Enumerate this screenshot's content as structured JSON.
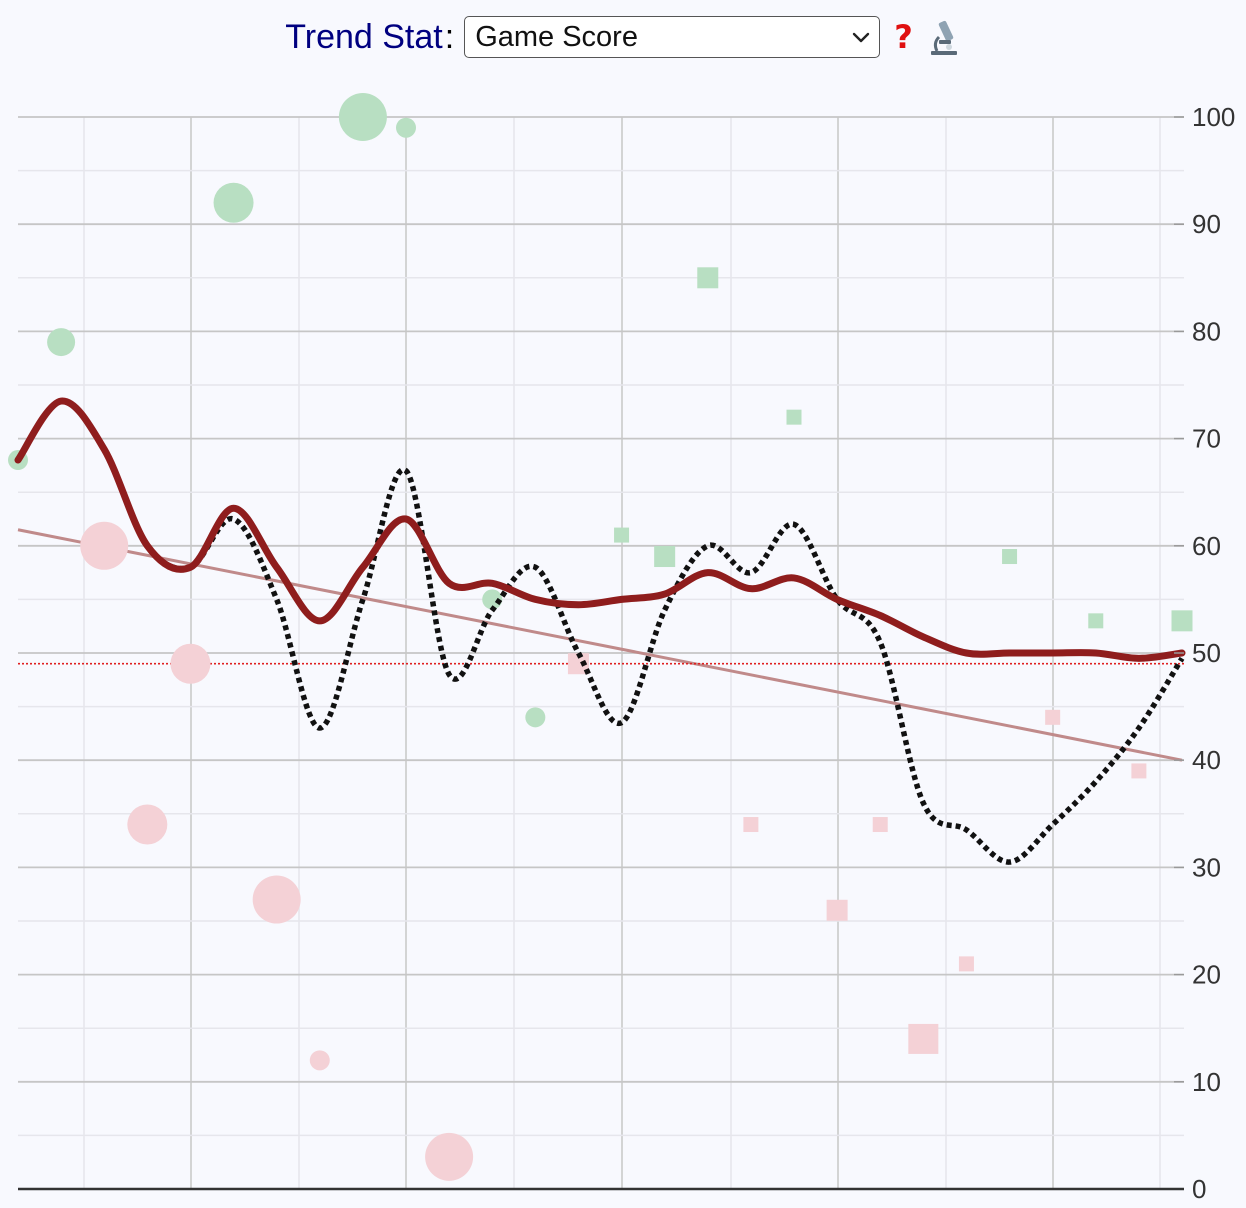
{
  "toolbar": {
    "label": "Trend Stat",
    "colon": ":",
    "selected": "Game Score",
    "help_glyph": "?",
    "help_icon": "question-icon",
    "lab_icon": "microscope-icon"
  },
  "chart_data": {
    "type": "scatter",
    "title": "",
    "xlabel": "",
    "ylabel": "",
    "ylim": [
      0,
      100
    ],
    "xlim": [
      0,
      27
    ],
    "grid": true,
    "y_ticks": [
      "0",
      "10",
      "20",
      "30",
      "40",
      "50",
      "60",
      "70",
      "80",
      "90",
      "100"
    ],
    "colors": {
      "win": "#b8dfc2",
      "loss": "#f4d1d6",
      "cumulative": "#8f1d1d",
      "rolling": "#111111",
      "regression": "#c08a8a",
      "reference": "#e02020"
    },
    "points": [
      {
        "x": 0,
        "y": 68,
        "result": "win",
        "shape": "circle",
        "size": 1
      },
      {
        "x": 1,
        "y": 79,
        "result": "win",
        "shape": "circle",
        "size": 2
      },
      {
        "x": 2,
        "y": 60,
        "result": "loss",
        "shape": "circle",
        "size": 4
      },
      {
        "x": 3,
        "y": 34,
        "result": "loss",
        "shape": "circle",
        "size": 3
      },
      {
        "x": 4,
        "y": 49,
        "result": "loss",
        "shape": "circle",
        "size": 3
      },
      {
        "x": 5,
        "y": 92,
        "result": "win",
        "shape": "circle",
        "size": 3
      },
      {
        "x": 6,
        "y": 27,
        "result": "loss",
        "shape": "circle",
        "size": 4
      },
      {
        "x": 7,
        "y": 12,
        "result": "loss",
        "shape": "circle",
        "size": 1
      },
      {
        "x": 8,
        "y": 100,
        "result": "win",
        "shape": "circle",
        "size": 4
      },
      {
        "x": 9,
        "y": 99,
        "result": "win",
        "shape": "circle",
        "size": 1
      },
      {
        "x": 10,
        "y": 3,
        "result": "loss",
        "shape": "circle",
        "size": 4
      },
      {
        "x": 11,
        "y": 55,
        "result": "win",
        "shape": "circle",
        "size": 1
      },
      {
        "x": 12,
        "y": 44,
        "result": "win",
        "shape": "circle",
        "size": 1
      },
      {
        "x": 13,
        "y": 49,
        "result": "loss",
        "shape": "square",
        "size": 2
      },
      {
        "x": 14,
        "y": 61,
        "result": "win",
        "shape": "square",
        "size": 1
      },
      {
        "x": 15,
        "y": 59,
        "result": "win",
        "shape": "square",
        "size": 2
      },
      {
        "x": 16,
        "y": 85,
        "result": "win",
        "shape": "square",
        "size": 2
      },
      {
        "x": 17,
        "y": 34,
        "result": "loss",
        "shape": "square",
        "size": 1
      },
      {
        "x": 18,
        "y": 72,
        "result": "win",
        "shape": "square",
        "size": 1
      },
      {
        "x": 19,
        "y": 26,
        "result": "loss",
        "shape": "square",
        "size": 2
      },
      {
        "x": 20,
        "y": 34,
        "result": "loss",
        "shape": "square",
        "size": 1
      },
      {
        "x": 21,
        "y": 14,
        "result": "loss",
        "shape": "square",
        "size": 3
      },
      {
        "x": 22,
        "y": 21,
        "result": "loss",
        "shape": "square",
        "size": 1
      },
      {
        "x": 23,
        "y": 59,
        "result": "win",
        "shape": "square",
        "size": 1
      },
      {
        "x": 24,
        "y": 44,
        "result": "loss",
        "shape": "square",
        "size": 1
      },
      {
        "x": 25,
        "y": 53,
        "result": "win",
        "shape": "square",
        "size": 1
      },
      {
        "x": 26,
        "y": 39,
        "result": "loss",
        "shape": "square",
        "size": 1
      },
      {
        "x": 27,
        "y": 53,
        "result": "win",
        "shape": "square",
        "size": 2
      }
    ],
    "series": [
      {
        "style": "cumulative-average",
        "x": [
          0,
          1,
          2,
          3,
          4,
          5,
          6,
          7,
          8,
          9,
          10,
          11,
          12,
          13,
          14,
          15,
          16,
          17,
          18,
          19,
          20,
          21,
          22,
          23,
          24,
          25,
          26,
          27
        ],
        "values": [
          68,
          73.5,
          69,
          60,
          58,
          63.5,
          58,
          53,
          58,
          62.5,
          56.5,
          56.5,
          55,
          54.5,
          55,
          55.5,
          57.5,
          56,
          57,
          55,
          53.5,
          51.5,
          50,
          50,
          50,
          50,
          49.5,
          50
        ]
      },
      {
        "style": "rolling-average",
        "x": [
          0,
          1,
          2,
          3,
          4,
          5,
          6,
          7,
          8,
          9,
          10,
          11,
          12,
          13,
          14,
          15,
          16,
          17,
          18,
          19,
          20,
          21,
          22,
          23,
          24,
          25,
          26,
          27
        ],
        "values": [
          68,
          73.5,
          69,
          60,
          58,
          62.5,
          55,
          43,
          55,
          67,
          48,
          54,
          58,
          50,
          43.5,
          54,
          60,
          57.5,
          62,
          55,
          51,
          36,
          33.5,
          30.5,
          34,
          38,
          43,
          49.5
        ]
      },
      {
        "style": "linear-trend",
        "x": [
          0,
          27
        ],
        "values": [
          61.5,
          40
        ]
      }
    ],
    "reference_line": {
      "y": 49
    }
  }
}
